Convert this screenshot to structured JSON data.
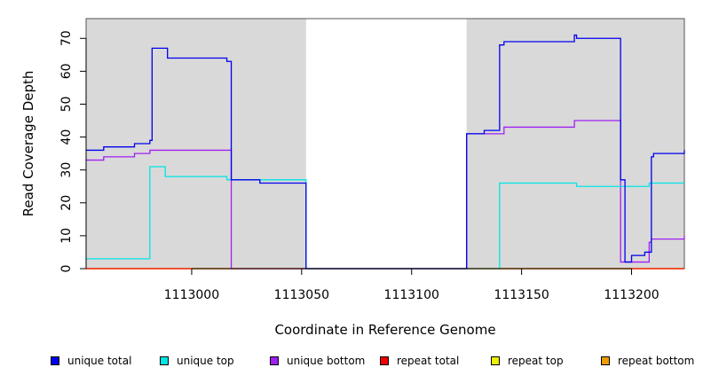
{
  "chart_data": {
    "type": "line",
    "title": "",
    "xlabel": "Coordinate in Reference Genome",
    "ylabel": "Read Coverage Depth",
    "xlim": [
      1112952,
      1113224
    ],
    "ylim": [
      0,
      76
    ],
    "xticks": [
      1113000,
      1113050,
      1113100,
      1113150,
      1113200
    ],
    "yticks": [
      0,
      10,
      20,
      30,
      40,
      50,
      60,
      70
    ],
    "shaded_ranges": [
      [
        1112952,
        1113052
      ],
      [
        1113125,
        1113224
      ]
    ],
    "step": true,
    "series": [
      {
        "name": "unique total",
        "color": "#0000ee",
        "x": [
          1112952,
          1112960,
          1112974,
          1112981,
          1112982,
          1112989,
          1113016,
          1113018,
          1113031,
          1113052,
          1113125,
          1113133,
          1113140,
          1113142,
          1113174,
          1113175,
          1113195,
          1113197,
          1113200,
          1113206,
          1113209,
          1113210,
          1113224
        ],
        "y": [
          36,
          37,
          38,
          39,
          67,
          64,
          63,
          27,
          26,
          0,
          41,
          42,
          68,
          69,
          71,
          70,
          27,
          2,
          4,
          5,
          34,
          35,
          36
        ]
      },
      {
        "name": "unique top",
        "color": "#00e5e5",
        "x": [
          1112952,
          1112981,
          1112988,
          1113016,
          1113018,
          1113052,
          1113140,
          1113175,
          1113195,
          1113208,
          1113224
        ],
        "y": [
          3,
          31,
          28,
          27,
          27,
          0,
          26,
          25,
          25,
          26,
          26
        ]
      },
      {
        "name": "unique bottom",
        "color": "#a020f0",
        "x": [
          1112952,
          1112960,
          1112974,
          1112981,
          1113018,
          1113125,
          1113142,
          1113174,
          1113195,
          1113208,
          1113209,
          1113224
        ],
        "y": [
          33,
          34,
          35,
          36,
          0,
          41,
          43,
          45,
          2,
          8,
          9,
          10
        ]
      },
      {
        "name": "repeat total",
        "color": "#ee0000",
        "x": [
          1112952,
          1113224
        ],
        "y": [
          0,
          0
        ]
      },
      {
        "name": "repeat top",
        "color": "#eeee00",
        "x": [
          1112952,
          1113224
        ],
        "y": [
          0,
          0
        ]
      },
      {
        "name": "repeat bottom",
        "color": "#ee9a00",
        "x": [
          1112952,
          1113224
        ],
        "y": [
          0,
          0
        ]
      }
    ],
    "legend": {
      "placement": "bottom",
      "items": [
        {
          "label": "unique total",
          "color": "#0000ee"
        },
        {
          "label": "unique top",
          "color": "#00e5e5"
        },
        {
          "label": "unique bottom",
          "color": "#a020f0"
        },
        {
          "label": "repeat total",
          "color": "#ee0000"
        },
        {
          "label": "repeat top",
          "color": "#eeee00"
        },
        {
          "label": "repeat bottom",
          "color": "#ee9a00"
        }
      ]
    }
  }
}
